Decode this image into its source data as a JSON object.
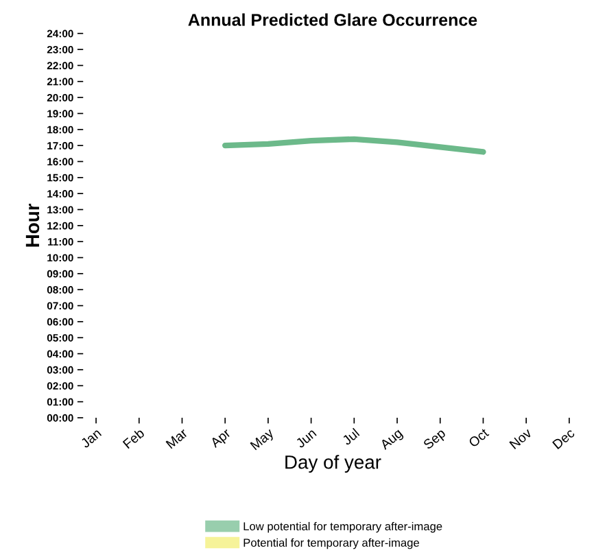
{
  "chart_data": {
    "type": "line",
    "title": "Annual Predicted Glare Occurrence",
    "xlabel": "Day of year",
    "ylabel": "Hour",
    "categories": [
      "Jan",
      "Feb",
      "Mar",
      "Apr",
      "May",
      "Jun",
      "Jul",
      "Aug",
      "Sep",
      "Oct",
      "Nov",
      "Dec"
    ],
    "ylim": [
      0,
      24
    ],
    "yticks": [
      {
        "value": 0,
        "label": "00:00"
      },
      {
        "value": 1,
        "label": "01:00"
      },
      {
        "value": 2,
        "label": "02:00"
      },
      {
        "value": 3,
        "label": "03:00"
      },
      {
        "value": 4,
        "label": "04:00"
      },
      {
        "value": 5,
        "label": "05:00"
      },
      {
        "value": 6,
        "label": "06:00"
      },
      {
        "value": 7,
        "label": "07:00"
      },
      {
        "value": 8,
        "label": "08:00"
      },
      {
        "value": 9,
        "label": "09:00"
      },
      {
        "value": 10,
        "label": "10:00"
      },
      {
        "value": 11,
        "label": "11:00"
      },
      {
        "value": 12,
        "label": "12:00"
      },
      {
        "value": 13,
        "label": "13:00"
      },
      {
        "value": 14,
        "label": "14:00"
      },
      {
        "value": 15,
        "label": "15:00"
      },
      {
        "value": 16,
        "label": "16:00"
      },
      {
        "value": 17,
        "label": "17:00"
      },
      {
        "value": 18,
        "label": "18:00"
      },
      {
        "value": 19,
        "label": "19:00"
      },
      {
        "value": 20,
        "label": "20:00"
      },
      {
        "value": 21,
        "label": "21:00"
      },
      {
        "value": 22,
        "label": "22:00"
      },
      {
        "value": 23,
        "label": "23:00"
      },
      {
        "value": 24,
        "label": "24:00"
      }
    ],
    "grid": false,
    "legend": "bottom",
    "marker": "none",
    "line_style": "solid",
    "series": [
      {
        "name": "Low potential for temporary after-image",
        "color": "#6cb98a",
        "values": [
          null,
          null,
          null,
          17.0,
          17.1,
          17.3,
          17.4,
          17.2,
          16.9,
          16.6,
          null,
          null
        ]
      },
      {
        "name": "Potential for temporary after-image",
        "color": "#f2ee6e",
        "values": [
          null,
          null,
          null,
          null,
          null,
          null,
          null,
          null,
          null,
          null,
          null,
          null
        ]
      }
    ]
  }
}
